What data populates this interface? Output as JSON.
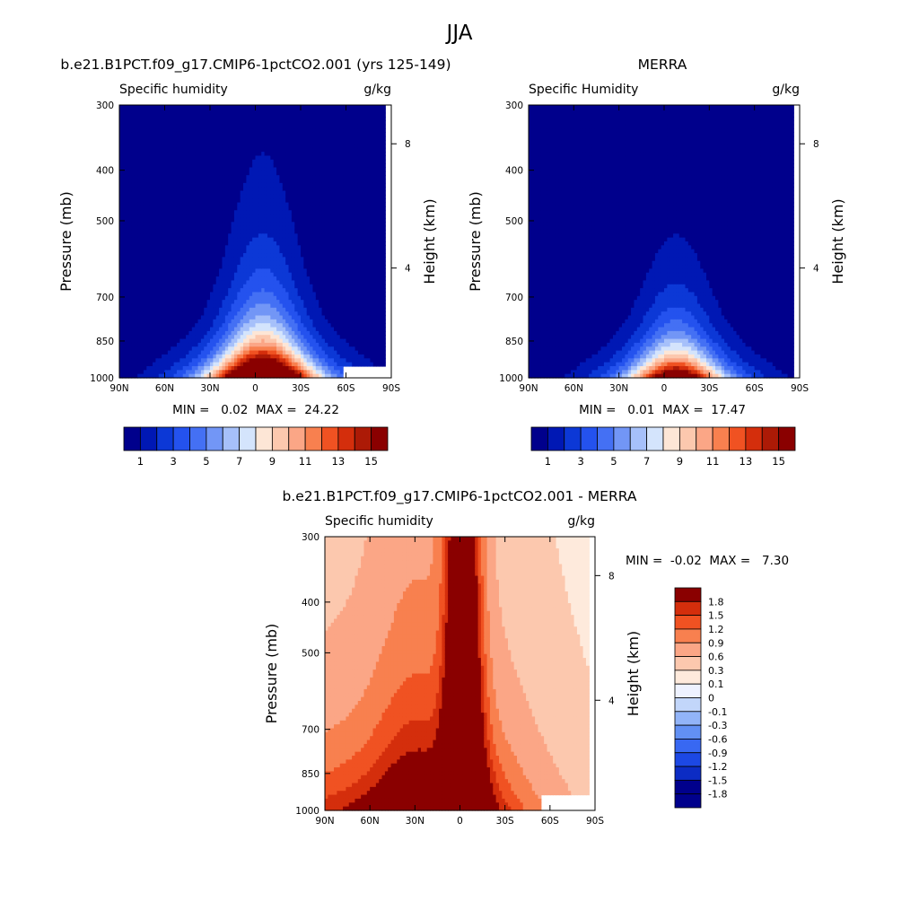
{
  "suptitle": "JJA",
  "model_palette": [
    "#00008c",
    "#0018b4",
    "#0c38d6",
    "#2452ee",
    "#4470f4",
    "#7296f6",
    "#a6c0fa",
    "#d4e4fc",
    "#fde6d6",
    "#fcc8ae",
    "#fba686",
    "#f8804f",
    "#f05222",
    "#d42e0c",
    "#ac1a06",
    "#8a0000"
  ],
  "diff_palette": [
    "#00008c",
    "#0c2cc4",
    "#1c48e4",
    "#3868f2",
    "#6290f4",
    "#92b4f8",
    "#c2d6fa",
    "#eef2ff",
    "#feeadc",
    "#fcc8ae",
    "#fba686",
    "#f8804f",
    "#f05222",
    "#d42e0c",
    "#8a0000"
  ],
  "chart_data": [
    {
      "type": "heatmap",
      "title": "b.e21.B1PCT.f09_g17.CMIP6-1pctCO2.001 (yrs 125-149)",
      "left_label": "Specific humidity",
      "right_label": "g/kg",
      "xlabel": "",
      "ylabel": "Pressure (mb)",
      "y2label": "Height (km)",
      "x_ticks": [
        "90N",
        "60N",
        "30N",
        "0",
        "30S",
        "60S",
        "90S"
      ],
      "x_range": [
        90,
        -90
      ],
      "y_ticks": [
        300,
        400,
        500,
        700,
        850,
        1000
      ],
      "y_range": [
        300,
        1000
      ],
      "y_log": true,
      "y2_ticks": [
        {
          "value": "8",
          "pressure": 356
        },
        {
          "value": "4",
          "pressure": 616
        }
      ],
      "min_max_text": "MIN =   0.02  MAX =  24.22",
      "colorbar": {
        "orientation": "horizontal",
        "labels": [
          "1",
          "3",
          "5",
          "7",
          "9",
          "11",
          "13",
          "15"
        ],
        "levels": [
          1,
          2,
          3,
          4,
          5,
          6,
          7,
          8,
          9,
          10,
          11,
          12,
          13,
          14,
          15
        ]
      },
      "field": {
        "lat0": -5,
        "peak": 24.22,
        "sigma_trop": 18,
        "sigma_mid": 34,
        "scale_height_core": 240,
        "scale_height_mid": 95,
        "missing_south_of": 57,
        "missing_below": 945
      }
    },
    {
      "type": "heatmap",
      "title": "MERRA",
      "left_label": "Specific Humidity",
      "right_label": "g/kg",
      "xlabel": "",
      "ylabel": "Pressure (mb)",
      "y2label": "Height (km)",
      "x_ticks": [
        "90N",
        "60N",
        "30N",
        "0",
        "30S",
        "60S",
        "90S"
      ],
      "x_range": [
        90,
        -90
      ],
      "y_ticks": [
        300,
        400,
        500,
        700,
        850,
        1000
      ],
      "y_range": [
        300,
        1000
      ],
      "y_log": true,
      "y2_ticks": [
        {
          "value": "8",
          "pressure": 356
        },
        {
          "value": "4",
          "pressure": 616
        }
      ],
      "min_max_text": "MIN =   0.01  MAX =  17.47",
      "colorbar": {
        "orientation": "horizontal",
        "labels": [
          "1",
          "3",
          "5",
          "7",
          "9",
          "11",
          "13",
          "15"
        ],
        "levels": [
          1,
          2,
          3,
          4,
          5,
          6,
          7,
          8,
          9,
          10,
          11,
          12,
          13,
          14,
          15
        ]
      },
      "field": {
        "lat0": -8,
        "peak": 17.47,
        "sigma_trop": 17,
        "sigma_mid": 32,
        "scale_height_core": 200,
        "scale_height_mid": 88,
        "missing_south_of": 84,
        "missing_below": 1000
      }
    },
    {
      "type": "heatmap",
      "title": "b.e21.B1PCT.f09_g17.CMIP6-1pctCO2.001 - MERRA",
      "left_label": "Specific humidity",
      "right_label": "g/kg",
      "xlabel": "",
      "ylabel": "Pressure (mb)",
      "y2label": "Height (km)",
      "x_ticks": [
        "90N",
        "60N",
        "30N",
        "0",
        "30S",
        "60S",
        "90S"
      ],
      "x_range": [
        90,
        -90
      ],
      "y_ticks": [
        300,
        400,
        500,
        700,
        850,
        1000
      ],
      "y_range": [
        300,
        1000
      ],
      "y_log": true,
      "y2_ticks": [
        {
          "value": "8",
          "pressure": 356
        },
        {
          "value": "4",
          "pressure": 616
        }
      ],
      "min_max_text": "MIN =  -0.02  MAX =   7.30",
      "colorbar": {
        "orientation": "vertical",
        "labels": [
          "1.8",
          "1.5",
          "1.2",
          "0.9",
          "0.6",
          "0.3",
          "0.1",
          "0",
          "-0.1",
          "-0.3",
          "-0.6",
          "-0.9",
          "-1.2",
          "-1.5",
          "-1.8"
        ],
        "levels": [
          -1.8,
          -1.5,
          -1.2,
          -0.9,
          -0.6,
          -0.3,
          -0.1,
          0,
          0.1,
          0.3,
          0.6,
          0.9,
          1.2,
          1.5,
          1.8
        ]
      },
      "field": {
        "lat0": -2,
        "peak": 7.3,
        "sigma_trop": 8,
        "missing_south_of": 53,
        "missing_below": 940
      }
    }
  ]
}
